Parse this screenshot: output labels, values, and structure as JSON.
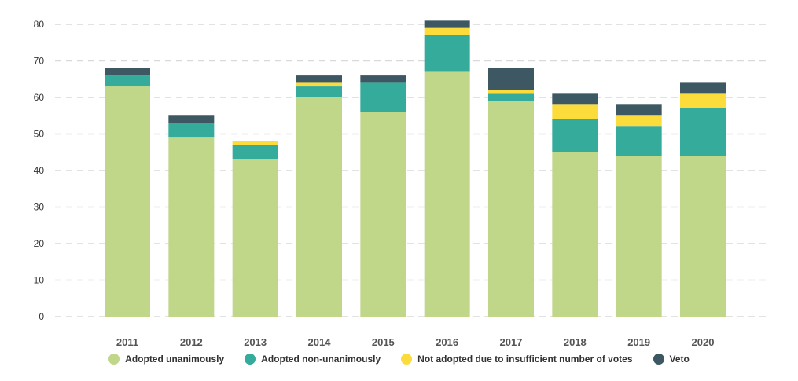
{
  "chart_data": {
    "type": "bar",
    "stacked": true,
    "categories": [
      "2011",
      "2012",
      "2013",
      "2014",
      "2015",
      "2016",
      "2017",
      "2018",
      "2019",
      "2020"
    ],
    "series": [
      {
        "name": "Adopted unanimously",
        "color": "#c0d689",
        "values": [
          63,
          49,
          43,
          60,
          56,
          67,
          59,
          45,
          44,
          44
        ]
      },
      {
        "name": "Adopted non-unanimously",
        "color": "#35ab9b",
        "values": [
          3,
          4,
          4,
          3,
          8,
          10,
          2,
          9,
          8,
          13
        ]
      },
      {
        "name": "Not adopted due to insufficient number of votes",
        "color": "#fbdc3b",
        "values": [
          0,
          0,
          1,
          1,
          0,
          2,
          1,
          4,
          3,
          4
        ]
      },
      {
        "name": "Veto",
        "color": "#3d5862",
        "values": [
          2,
          2,
          0,
          2,
          2,
          2,
          6,
          3,
          3,
          3
        ]
      }
    ],
    "yticks": [
      0,
      10,
      20,
      30,
      40,
      50,
      60,
      70,
      80
    ],
    "ylim": [
      0,
      80
    ],
    "grid": true,
    "legend": "bottom-center",
    "title": "",
    "xlabel": "",
    "ylabel": ""
  }
}
